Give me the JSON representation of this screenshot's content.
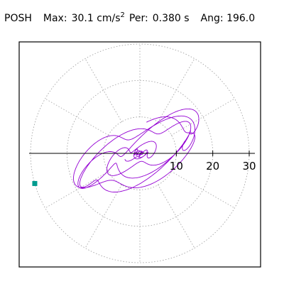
{
  "header": {
    "station": "POSH",
    "max_label": "Max:",
    "max_value": "30.1",
    "max_unit": "cm/s",
    "max_unit_exp": "2",
    "per_label": "Per:",
    "per_value": "0.380 s",
    "ang_label": "Ang:",
    "ang_value": "196.0"
  },
  "chart_data": {
    "type": "line",
    "title": "",
    "radial_ticks": [
      10,
      20,
      30
    ],
    "rlim": [
      0,
      30
    ],
    "grid": "dotted polar: circles at 10, 20, 30 with radial spokes every 30 degrees",
    "series_color": "#9400D3",
    "marker_color": "#009B8F",
    "max_amplitude": 30.1,
    "max_angle_deg": 196.0,
    "trace_components": [
      {
        "ax": 14.0,
        "bx": 1.5,
        "ay": 6.0,
        "by": 1.0,
        "w": 1.0,
        "decay": 0.0
      },
      {
        "ax": 6.0,
        "bx": 0.7,
        "ay": 4.0,
        "by": 0.6,
        "w": 0.9,
        "decay": 0.0
      },
      {
        "ax": 4.0,
        "bx": 0.6,
        "ay": 3.5,
        "by": 0.7,
        "w": 1.3,
        "decay": 0.0
      },
      {
        "ax": 2.5,
        "bx": 0.5,
        "ay": 3.0,
        "by": 0.3,
        "w": 3.7,
        "decay": 0.0
      }
    ]
  }
}
